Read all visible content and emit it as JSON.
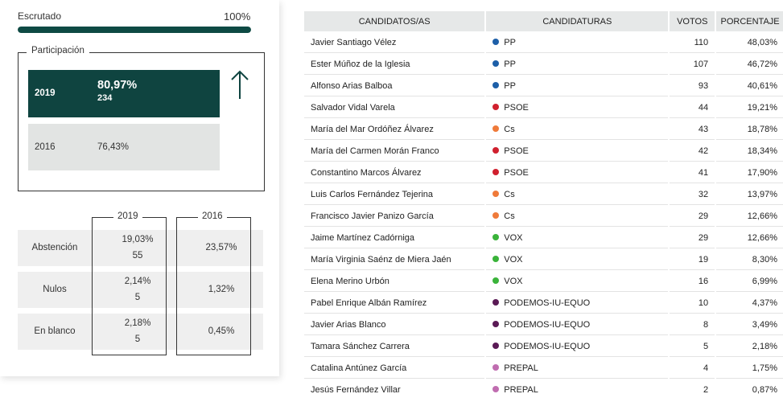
{
  "escrutado": {
    "label": "Escrutado",
    "value": "100%",
    "fraction": 1.0,
    "fill_color": "#0e4a44"
  },
  "participacion": {
    "title": "Participación",
    "current": {
      "year": "2019",
      "pct": "80,97%",
      "count": "234",
      "color": "#0f4440"
    },
    "previous": {
      "year": "2016",
      "pct": "76,43%",
      "color": "#e2e4e3"
    },
    "trend_icon": "arrow-up-icon"
  },
  "stats": {
    "col_2019": "2019",
    "col_2016": "2016",
    "rows": [
      {
        "label": "Abstención",
        "pct_2019": "19,03%",
        "count_2019": "55",
        "pct_2016": "23,57%"
      },
      {
        "label": "Nulos",
        "pct_2019": "2,14%",
        "count_2019": "5",
        "pct_2016": "1,32%"
      },
      {
        "label": "En blanco",
        "pct_2019": "2,18%",
        "count_2019": "5",
        "pct_2016": "0,45%"
      }
    ]
  },
  "results": {
    "headers": {
      "candidate": "CANDIDATOS/AS",
      "party": "CANDIDATURAS",
      "votes": "VOTOS",
      "percent": "PORCENTAJE"
    },
    "party_colors": {
      "PP": "#1d5fa8",
      "PSOE": "#d0202e",
      "Cs": "#ef7a3a",
      "VOX": "#3ab33a",
      "PODEMOS-IU-EQUO": "#5a1a55",
      "PREPAL": "#c06db0"
    },
    "rows": [
      {
        "candidate": "Javier Santiago Vélez",
        "party": "PP",
        "votes": "110",
        "percent": "48,03%"
      },
      {
        "candidate": "Ester Múñoz de la Iglesia",
        "party": "PP",
        "votes": "107",
        "percent": "46,72%"
      },
      {
        "candidate": "Alfonso Arias Balboa",
        "party": "PP",
        "votes": "93",
        "percent": "40,61%"
      },
      {
        "candidate": "Salvador Vidal Varela",
        "party": "PSOE",
        "votes": "44",
        "percent": "19,21%"
      },
      {
        "candidate": "María del Mar Ordóñez Álvarez",
        "party": "Cs",
        "votes": "43",
        "percent": "18,78%"
      },
      {
        "candidate": "María del Carmen Morán Franco",
        "party": "PSOE",
        "votes": "42",
        "percent": "18,34%"
      },
      {
        "candidate": "Constantino Marcos Álvarez",
        "party": "PSOE",
        "votes": "41",
        "percent": "17,90%"
      },
      {
        "candidate": "Luis Carlos Fernández Tejerina",
        "party": "Cs",
        "votes": "32",
        "percent": "13,97%"
      },
      {
        "candidate": "Francisco Javier Panizo García",
        "party": "Cs",
        "votes": "29",
        "percent": "12,66%"
      },
      {
        "candidate": "Jaime Martínez Cadórniga",
        "party": "VOX",
        "votes": "29",
        "percent": "12,66%"
      },
      {
        "candidate": "María Virginia Saénz de Miera Jaén",
        "party": "VOX",
        "votes": "19",
        "percent": "8,30%"
      },
      {
        "candidate": "Elena Merino Urbón",
        "party": "VOX",
        "votes": "16",
        "percent": "6,99%"
      },
      {
        "candidate": "Pabel Enrique Albán Ramírez",
        "party": "PODEMOS-IU-EQUO",
        "votes": "10",
        "percent": "4,37%"
      },
      {
        "candidate": "Javier Arias Blanco",
        "party": "PODEMOS-IU-EQUO",
        "votes": "8",
        "percent": "3,49%"
      },
      {
        "candidate": "Tamara Sánchez Carrera",
        "party": "PODEMOS-IU-EQUO",
        "votes": "5",
        "percent": "2,18%"
      },
      {
        "candidate": "Catalina Antúnez García",
        "party": "PREPAL",
        "votes": "4",
        "percent": "1,75%"
      },
      {
        "candidate": "Jesús Fernández Villar",
        "party": "PREPAL",
        "votes": "2",
        "percent": "0,87%"
      }
    ]
  }
}
